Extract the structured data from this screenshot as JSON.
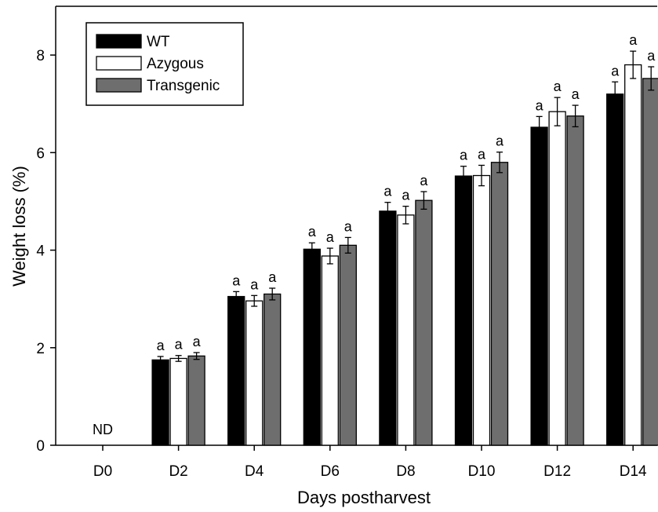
{
  "chart_data": {
    "type": "bar",
    "title": "",
    "xlabel": "Days postharvest",
    "ylabel": "Weight loss (%)",
    "ylim": [
      0,
      9
    ],
    "yticks": [
      0,
      2,
      4,
      6,
      8
    ],
    "grid": false,
    "legend_position": "top-left",
    "categories": [
      "D0",
      "D2",
      "D4",
      "D6",
      "D8",
      "D10",
      "D12",
      "D14"
    ],
    "series": [
      {
        "name": "WT",
        "color": "#000000",
        "values": [
          null,
          1.75,
          3.05,
          4.02,
          4.8,
          5.52,
          6.52,
          7.2
        ],
        "errors": [
          null,
          0.07,
          0.1,
          0.13,
          0.18,
          0.2,
          0.22,
          0.25
        ],
        "labels": [
          "",
          "a",
          "a",
          "a",
          "a",
          "a",
          "a",
          "a"
        ]
      },
      {
        "name": "Azygous",
        "color": "#ffffff",
        "values": [
          null,
          1.78,
          2.96,
          3.88,
          4.72,
          5.53,
          6.84,
          7.8
        ],
        "errors": [
          null,
          0.06,
          0.11,
          0.16,
          0.18,
          0.21,
          0.29,
          0.28
        ],
        "labels": [
          "",
          "a",
          "a",
          "a",
          "a",
          "a",
          "a",
          "a"
        ]
      },
      {
        "name": "Transgenic",
        "color": "#6e6e6e",
        "values": [
          null,
          1.83,
          3.1,
          4.1,
          5.02,
          5.8,
          6.75,
          7.52
        ],
        "errors": [
          null,
          0.07,
          0.12,
          0.16,
          0.18,
          0.21,
          0.22,
          0.24
        ],
        "labels": [
          "",
          "a",
          "a",
          "a",
          "a",
          "a",
          "a",
          "a"
        ]
      }
    ],
    "annotations": [
      {
        "category": "D0",
        "text": "ND"
      }
    ]
  }
}
